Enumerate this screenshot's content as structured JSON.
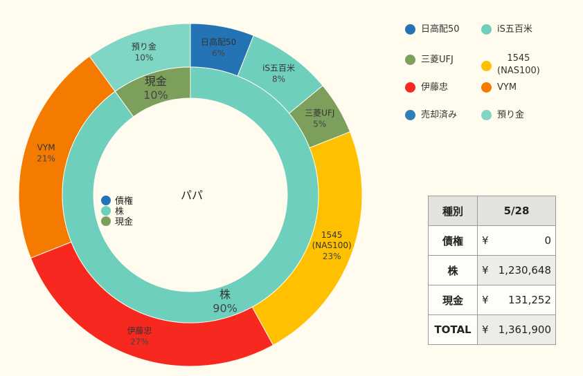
{
  "chart_data": {
    "type": "pie",
    "title": "パパ",
    "outer": {
      "slices": [
        {
          "name": "日高配50",
          "pct_label": "6%",
          "value": 6,
          "color": "#2474b5"
        },
        {
          "name": "iS五百米",
          "pct_label": "8%",
          "value": 8,
          "color": "#6dcfbc"
        },
        {
          "name": "三菱UFJ",
          "pct_label": "5%",
          "value": 5,
          "color": "#7d9f5c"
        },
        {
          "name": "1545\n(NAS100)",
          "pct_label": "23%",
          "value": 23,
          "color": "#ffc000"
        },
        {
          "name": "伊藤忠",
          "pct_label": "27%",
          "value": 27,
          "color": "#f7281f"
        },
        {
          "name": "VYM",
          "pct_label": "21%",
          "value": 21,
          "color": "#f57b00"
        },
        {
          "name": "預り金",
          "pct_label": "10%",
          "value": 10,
          "color": "#7fd6c4"
        }
      ]
    },
    "inner": {
      "slices": [
        {
          "name": "株",
          "pct_label": "90%",
          "value": 90,
          "color": "#6dcfbc"
        },
        {
          "name": "現金",
          "pct_label": "10%",
          "value": 10,
          "color": "#7d9f5c"
        }
      ],
      "legend": [
        {
          "name": "債権",
          "color": "#2474b5"
        },
        {
          "name": "株",
          "color": "#6dcfbc"
        },
        {
          "name": "現金",
          "color": "#7d9f5c"
        }
      ]
    }
  },
  "legend": [
    {
      "name": "日高配50",
      "color": "#2474b5"
    },
    {
      "name": "iS五百米",
      "color": "#6dcfbc"
    },
    {
      "name": "三菱UFJ",
      "color": "#7d9f5c"
    },
    {
      "name": "1545",
      "name2": "(NAS100)",
      "color": "#ffc000"
    },
    {
      "name": "伊藤忠",
      "color": "#f7281f"
    },
    {
      "name": "VYM",
      "color": "#f57b00"
    },
    {
      "name": "売却済み",
      "color": "#2f7fb7"
    },
    {
      "name": "預り金",
      "color": "#7fd6c4"
    }
  ],
  "table": {
    "header": {
      "col1": "種別",
      "col2": "5/28"
    },
    "rows": [
      {
        "label": "債権",
        "currency": "¥",
        "amount": "0"
      },
      {
        "label": "株",
        "currency": "¥",
        "amount": "1,230,648"
      },
      {
        "label": "現金",
        "currency": "¥",
        "amount": "131,252"
      },
      {
        "label": "TOTAL",
        "currency": "¥",
        "amount": "1,361,900"
      }
    ]
  }
}
